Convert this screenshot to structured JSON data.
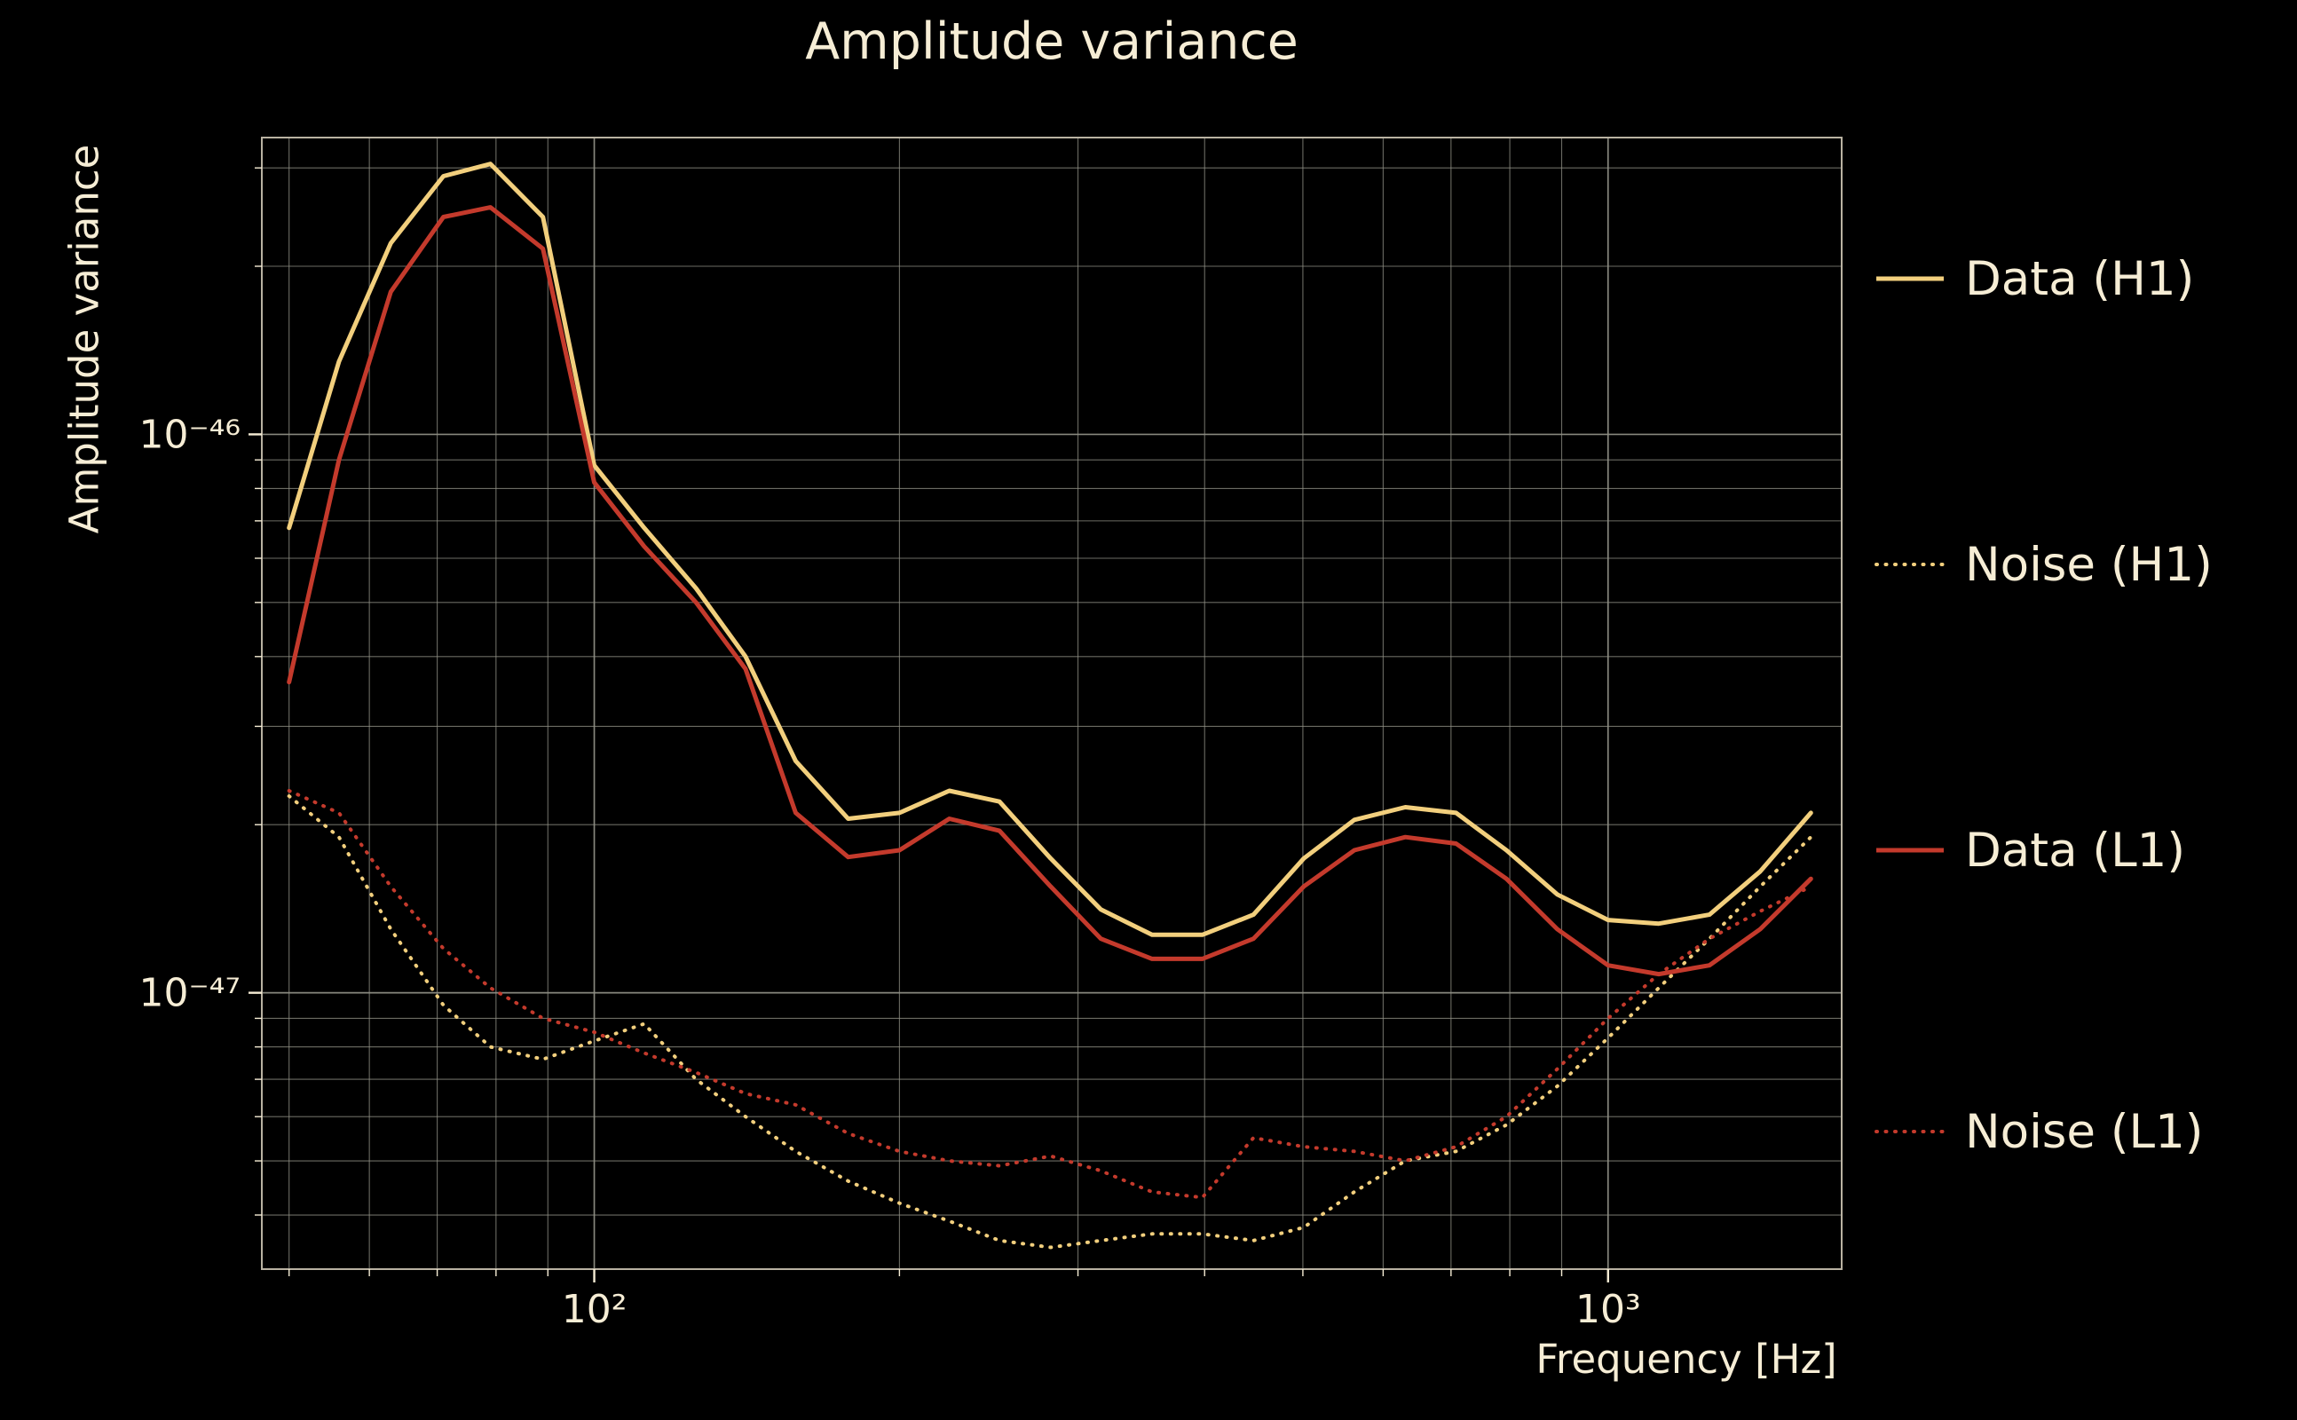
{
  "figure": {
    "background": "#000000",
    "text_color": "#f6edd5",
    "grid_color": "#8f8f85",
    "spine_color": "#b9b2a2",
    "h1_color": "#f2cf7d",
    "l1_color": "#c43a2c"
  },
  "chart_data": {
    "type": "line",
    "title": "Amplitude variance",
    "xlabel": "Frequency [Hz]",
    "ylabel": "Amplitude variance",
    "x_scale": "log",
    "y_scale": "log",
    "xlim": [
      47,
      1700
    ],
    "ylim": [
      3.2e-48,
      3.4e-46
    ],
    "grid": true,
    "legend_position": "right",
    "x_ticks": [
      {
        "value": 100,
        "label": "10²"
      },
      {
        "value": 1000,
        "label": "10³"
      }
    ],
    "y_ticks": [
      {
        "value": 1e-46,
        "label": "10⁻⁴⁶"
      },
      {
        "value": 1e-47,
        "label": "10⁻⁴⁷"
      }
    ],
    "x": [
      50,
      56,
      63,
      71,
      79,
      89,
      100,
      112,
      126,
      141,
      158,
      178,
      200,
      224,
      251,
      282,
      316,
      355,
      398,
      447,
      501,
      562,
      631,
      708,
      794,
      891,
      1000,
      1122,
      1259,
      1413,
      1585
    ],
    "series": [
      {
        "name": "Data (H1)",
        "color": "#f2cf7d",
        "style": "solid",
        "values": [
          6.8e-47,
          1.35e-46,
          2.2e-46,
          2.9e-46,
          3.05e-46,
          2.45e-46,
          8.8e-47,
          6.8e-47,
          5.3e-47,
          4e-47,
          2.6e-47,
          2.05e-47,
          2.1e-47,
          2.3e-47,
          2.2e-47,
          1.74e-47,
          1.41e-47,
          1.27e-47,
          1.27e-47,
          1.38e-47,
          1.74e-47,
          2.04e-47,
          2.15e-47,
          2.1e-47,
          1.8e-47,
          1.5e-47,
          1.35e-47,
          1.33e-47,
          1.38e-47,
          1.65e-47,
          2.1e-47
        ]
      },
      {
        "name": "Noise (H1)",
        "color": "#f2cf7d",
        "style": "dotted",
        "values": [
          2.25e-47,
          1.9e-47,
          1.3e-47,
          9.5e-48,
          8e-48,
          7.6e-48,
          8.2e-48,
          8.8e-48,
          7e-48,
          6e-48,
          5.2e-48,
          4.6e-48,
          4.2e-48,
          3.9e-48,
          3.6e-48,
          3.5e-48,
          3.6e-48,
          3.7e-48,
          3.7e-48,
          3.6e-48,
          3.8e-48,
          4.4e-48,
          5e-48,
          5.2e-48,
          5.8e-48,
          6.8e-48,
          8.3e-48,
          1.02e-47,
          1.25e-47,
          1.55e-47,
          1.9e-47
        ]
      },
      {
        "name": "Data (L1)",
        "color": "#c43a2c",
        "style": "solid",
        "values": [
          3.6e-47,
          9e-47,
          1.8e-46,
          2.45e-46,
          2.55e-46,
          2.15e-46,
          8.2e-47,
          6.3e-47,
          5e-47,
          3.8e-47,
          2.1e-47,
          1.75e-47,
          1.8e-47,
          2.05e-47,
          1.95e-47,
          1.55e-47,
          1.25e-47,
          1.15e-47,
          1.15e-47,
          1.25e-47,
          1.55e-47,
          1.8e-47,
          1.9e-47,
          1.85e-47,
          1.6e-47,
          1.3e-47,
          1.12e-47,
          1.08e-47,
          1.12e-47,
          1.3e-47,
          1.6e-47
        ]
      },
      {
        "name": "Noise (L1)",
        "color": "#c43a2c",
        "style": "dotted",
        "values": [
          2.3e-47,
          2.1e-47,
          1.55e-47,
          1.2e-47,
          1.02e-47,
          9e-48,
          8.5e-48,
          7.8e-48,
          7.2e-48,
          6.6e-48,
          6.3e-48,
          5.6e-48,
          5.2e-48,
          5e-48,
          4.9e-48,
          5.1e-48,
          4.8e-48,
          4.4e-48,
          4.3e-48,
          5.5e-48,
          5.3e-48,
          5.2e-48,
          5e-48,
          5.3e-48,
          6e-48,
          7.3e-48,
          9e-48,
          1.08e-47,
          1.25e-47,
          1.4e-47,
          1.55e-47
        ]
      }
    ]
  }
}
